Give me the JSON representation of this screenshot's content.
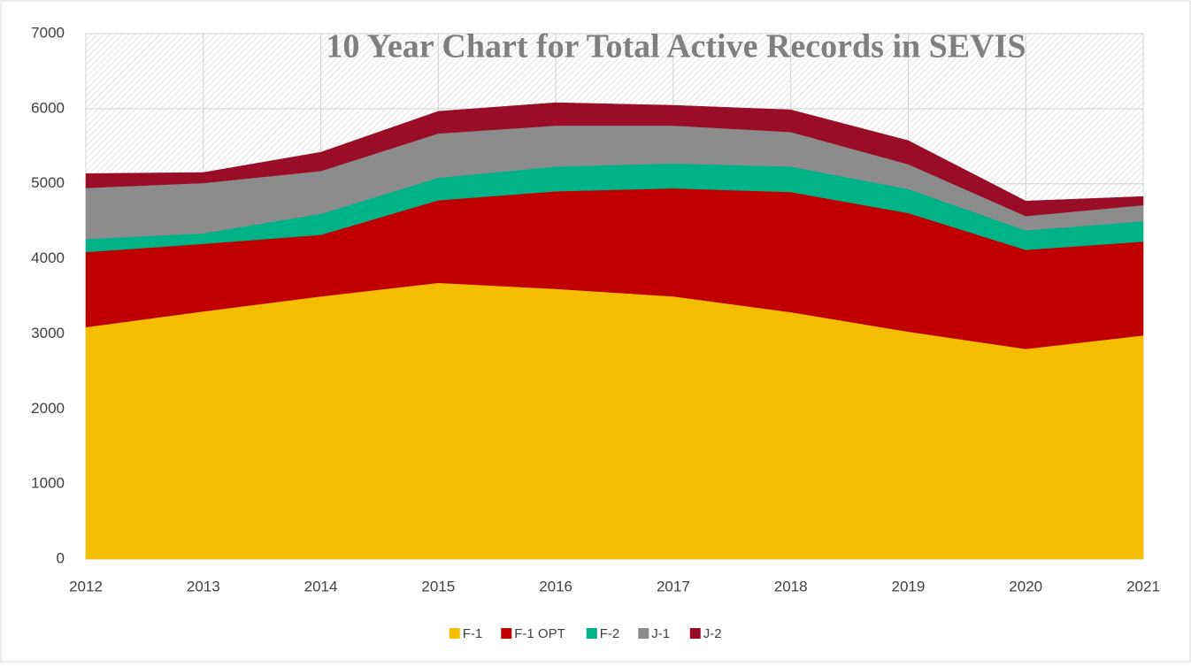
{
  "chart_data": {
    "type": "area",
    "stacked": true,
    "title": "10 Year Chart for Total Active Records in SEVIS",
    "categories": [
      "2012",
      "2013",
      "2014",
      "2015",
      "2016",
      "2017",
      "2018",
      "2019",
      "2020",
      "2021"
    ],
    "series": [
      {
        "name": "F-1",
        "color": "#f5be00",
        "values": [
          3090,
          3300,
          3500,
          3680,
          3600,
          3500,
          3290,
          3030,
          2800,
          2980
        ]
      },
      {
        "name": "F-1 OPT",
        "color": "#c00000",
        "values": [
          1000,
          900,
          820,
          1100,
          1300,
          1440,
          1600,
          1580,
          1320,
          1250
        ]
      },
      {
        "name": "F-2",
        "color": "#00b386",
        "values": [
          175,
          140,
          280,
          300,
          330,
          330,
          340,
          320,
          260,
          270
        ]
      },
      {
        "name": "J-1",
        "color": "#8c8c8c",
        "values": [
          680,
          670,
          570,
          590,
          545,
          505,
          460,
          330,
          190,
          215
        ]
      },
      {
        "name": "J-2",
        "color": "#990d26",
        "values": [
          190,
          140,
          250,
          295,
          305,
          270,
          295,
          315,
          200,
          115
        ]
      }
    ],
    "ylim": [
      0,
      7000
    ],
    "yticks": [
      0,
      1000,
      2000,
      3000,
      4000,
      5000,
      6000,
      7000
    ],
    "grid": true,
    "legend": "bottom"
  }
}
